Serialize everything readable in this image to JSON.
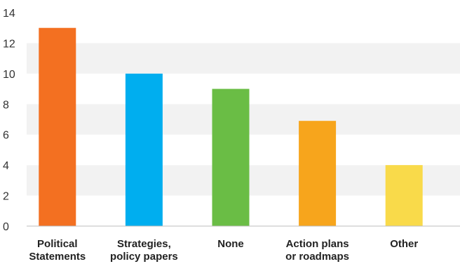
{
  "chart_data": {
    "type": "bar",
    "title": "",
    "xlabel": "",
    "ylabel": "",
    "ylim": [
      0,
      14
    ],
    "yticks": [
      0,
      2,
      4,
      6,
      8,
      10,
      12,
      14
    ],
    "grid": "horizontal",
    "legend": "none",
    "categories": [
      [
        "Political",
        "Statements"
      ],
      [
        "Strategies,",
        "policy papers"
      ],
      [
        "None"
      ],
      [
        "Action plans",
        "or roadmaps"
      ],
      [
        "Other"
      ]
    ],
    "values": [
      13,
      10,
      9,
      6.9,
      4
    ],
    "colors": [
      "#f37021",
      "#00aeef",
      "#6abd45",
      "#f7a51c",
      "#f9da4a"
    ]
  }
}
